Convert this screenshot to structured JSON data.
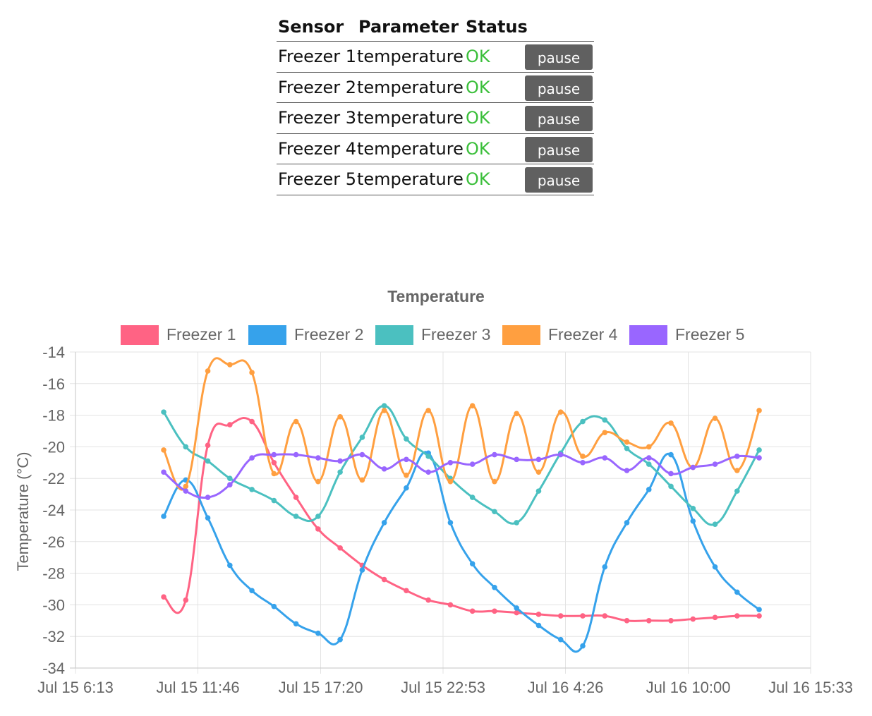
{
  "table": {
    "headers": {
      "sensor": "Sensor",
      "parameter": "Parameter",
      "status": "Status"
    },
    "rows": [
      {
        "sensor": "Freezer 1",
        "parameter": "temperature",
        "status": "OK",
        "action": "pause"
      },
      {
        "sensor": "Freezer 2",
        "parameter": "temperature",
        "status": "OK",
        "action": "pause"
      },
      {
        "sensor": "Freezer 3",
        "parameter": "temperature",
        "status": "OK",
        "action": "pause"
      },
      {
        "sensor": "Freezer 4",
        "parameter": "temperature",
        "status": "OK",
        "action": "pause"
      },
      {
        "sensor": "Freezer 5",
        "parameter": "temperature",
        "status": "OK",
        "action": "pause"
      }
    ],
    "status_color": "#3bbf3b",
    "button_color": "#606060"
  },
  "chart_data": {
    "type": "line",
    "title": "Temperature",
    "xlabel": "",
    "ylabel": "Temperature (°C)",
    "ylim": [
      -34,
      -14
    ],
    "yticks": [
      -14,
      -16,
      -18,
      -20,
      -22,
      -24,
      -26,
      -28,
      -30,
      -32,
      -34
    ],
    "xlim": [
      "2023-07-15 06:13",
      "2023-07-16 15:33"
    ],
    "xticks": [
      "Jul 15 6:13",
      "Jul 15 11:46",
      "Jul 15 17:20",
      "Jul 15 22:53",
      "Jul 16 4:26",
      "Jul 16 10:00",
      "Jul 16 15:33"
    ],
    "grid": true,
    "legend_position": "top",
    "x": [
      "Jul 15 10:13",
      "Jul 15 11:13",
      "Jul 15 12:13",
      "Jul 15 13:13",
      "Jul 15 14:13",
      "Jul 15 15:13",
      "Jul 15 16:13",
      "Jul 15 17:13",
      "Jul 15 18:13",
      "Jul 15 19:13",
      "Jul 15 20:13",
      "Jul 15 21:13",
      "Jul 15 22:13",
      "Jul 15 23:13",
      "Jul 16 0:13",
      "Jul 16 1:13",
      "Jul 16 2:13",
      "Jul 16 3:13",
      "Jul 16 4:13",
      "Jul 16 5:13",
      "Jul 16 6:13",
      "Jul 16 7:13",
      "Jul 16 8:13",
      "Jul 16 9:13",
      "Jul 16 10:13",
      "Jul 16 11:13",
      "Jul 16 12:13",
      "Jul 16 13:13"
    ],
    "series": [
      {
        "name": "Freezer 1",
        "color": "#ff6384",
        "values": [
          -29.5,
          -29.7,
          -19.9,
          -18.6,
          -18.4,
          -21.0,
          -23.2,
          -25.2,
          -26.4,
          -27.5,
          -28.4,
          -29.1,
          -29.7,
          -30.0,
          -30.4,
          -30.4,
          -30.5,
          -30.6,
          -30.7,
          -30.7,
          -30.7,
          -31.0,
          -31.0,
          -31.0,
          -30.9,
          -30.8,
          -30.7,
          -30.7
        ]
      },
      {
        "name": "Freezer 2",
        "color": "#36a2eb",
        "values": [
          -24.4,
          -22.1,
          -24.5,
          -27.5,
          -29.1,
          -30.1,
          -31.2,
          -31.8,
          -32.2,
          -27.8,
          -24.8,
          -22.6,
          -20.4,
          -24.8,
          -27.4,
          -28.9,
          -30.2,
          -31.3,
          -32.2,
          -32.6,
          -27.6,
          -24.8,
          -22.7,
          -20.5,
          -24.7,
          -27.6,
          -29.2,
          -30.3
        ]
      },
      {
        "name": "Freezer 3",
        "color": "#4bc0c0",
        "values": [
          -17.8,
          -20.0,
          -20.9,
          -22.0,
          -22.7,
          -23.4,
          -24.4,
          -24.4,
          -21.6,
          -19.4,
          -17.4,
          -19.5,
          -20.6,
          -22.0,
          -23.2,
          -24.1,
          -24.8,
          -22.8,
          -20.4,
          -18.4,
          -18.3,
          -20.1,
          -21.1,
          -22.5,
          -23.9,
          -24.9,
          -22.8,
          -20.2
        ]
      },
      {
        "name": "Freezer 4",
        "color": "#ff9f40",
        "values": [
          -20.2,
          -22.5,
          -15.2,
          -14.8,
          -15.3,
          -21.7,
          -18.4,
          -22.2,
          -18.1,
          -22.1,
          -17.7,
          -21.8,
          -17.7,
          -22.2,
          -17.4,
          -22.2,
          -17.9,
          -21.6,
          -17.8,
          -20.6,
          -19.1,
          -19.7,
          -20.0,
          -18.5,
          -21.3,
          -18.2,
          -21.5,
          -17.7
        ]
      },
      {
        "name": "Freezer 5",
        "color": "#9966ff",
        "values": [
          -21.6,
          -22.8,
          -23.2,
          -22.4,
          -20.7,
          -20.5,
          -20.5,
          -20.7,
          -20.9,
          -20.5,
          -21.4,
          -20.8,
          -21.6,
          -21.0,
          -21.1,
          -20.5,
          -20.8,
          -20.8,
          -20.5,
          -21.0,
          -20.7,
          -21.5,
          -20.7,
          -21.7,
          -21.3,
          -21.1,
          -20.6,
          -20.7
        ]
      }
    ]
  }
}
